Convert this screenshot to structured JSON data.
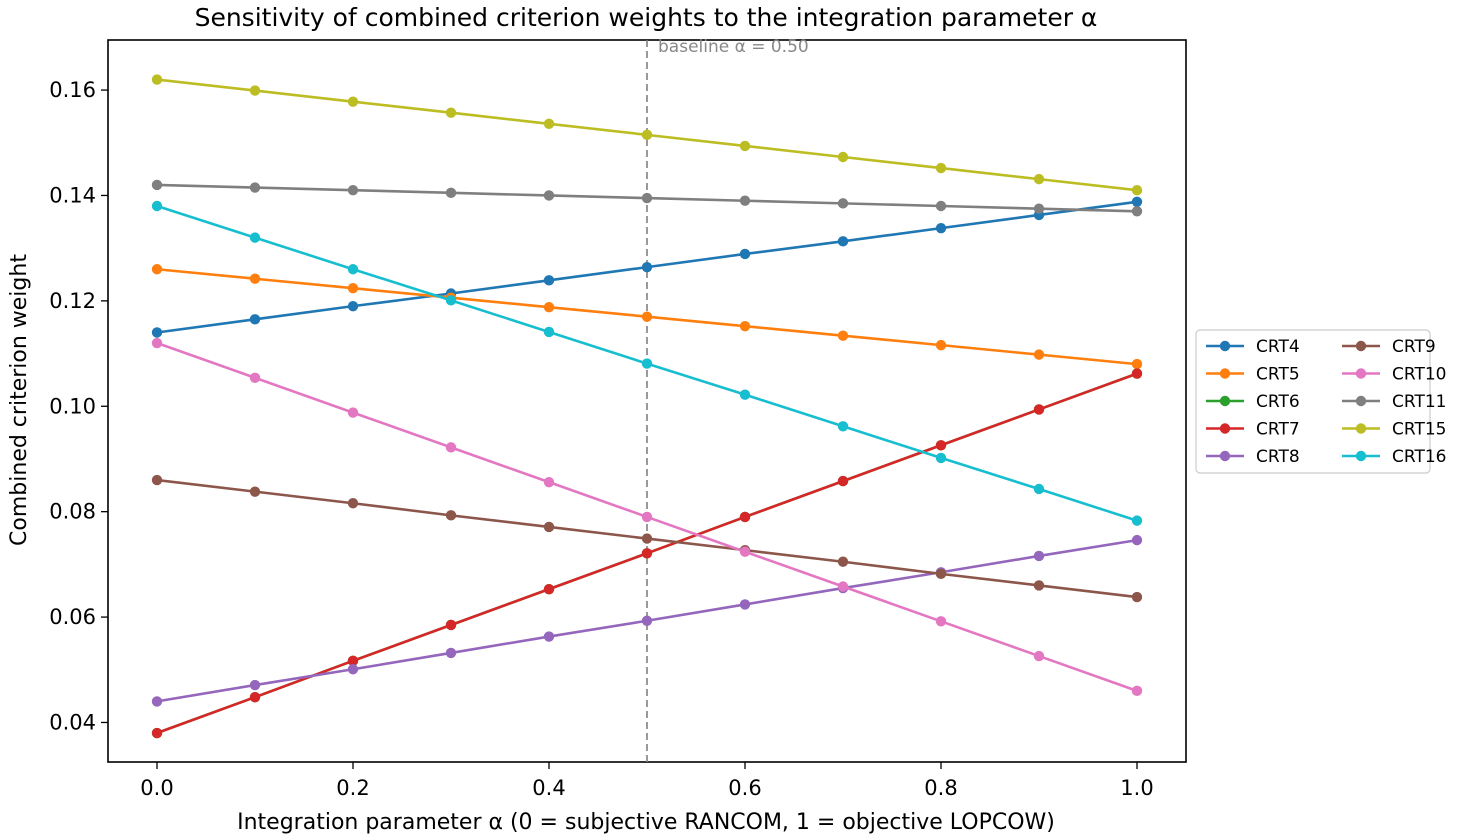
{
  "chart_data": {
    "type": "line",
    "title": "Sensitivity of combined criterion weights to the integration parameter α",
    "xlabel": "Integration parameter  α   (0 = subjective RANCOM,  1 = objective LOPCOW)",
    "ylabel": "Combined criterion weight",
    "x": [
      0.0,
      0.1,
      0.2,
      0.3,
      0.4,
      0.5,
      0.6,
      0.7,
      0.8,
      0.9,
      1.0
    ],
    "xlim": [
      -0.05,
      1.05
    ],
    "ylim": [
      0.0325,
      0.1695
    ],
    "xticks": [
      0.0,
      0.2,
      0.4,
      0.6,
      0.8,
      1.0
    ],
    "xtick_labels": [
      "0.0",
      "0.2",
      "0.4",
      "0.6",
      "0.8",
      "1.0"
    ],
    "yticks": [
      0.04,
      0.06,
      0.08,
      0.1,
      0.12,
      0.14,
      0.16
    ],
    "ytick_labels": [
      "0.04",
      "0.06",
      "0.08",
      "0.10",
      "0.12",
      "0.14",
      "0.16"
    ],
    "grid": false,
    "legend_placement": "outside-right",
    "baseline": {
      "x": 0.5,
      "label": "baseline α = 0.50",
      "color": "#808080"
    },
    "series": [
      {
        "name": "CRT4",
        "color": "#1f77b4",
        "values": [
          0.114,
          0.1165,
          0.119,
          0.1214,
          0.1239,
          0.1264,
          0.1289,
          0.1313,
          0.1338,
          0.1363,
          0.1388
        ]
      },
      {
        "name": "CRT5",
        "color": "#ff7f0e",
        "values": [
          0.126,
          0.1242,
          0.1224,
          0.1206,
          0.1188,
          0.117,
          0.1152,
          0.1134,
          0.1116,
          0.1098,
          0.108
        ]
      },
      {
        "name": "CRT6",
        "color": "#2ca02c",
        "values": [
          0.038,
          0.0448,
          0.0517,
          0.0585,
          0.0653,
          0.0721,
          0.079,
          0.0858,
          0.0926,
          0.0994,
          0.1062
        ]
      },
      {
        "name": "CRT7",
        "color": "#d62728",
        "values": [
          0.038,
          0.0448,
          0.0517,
          0.0585,
          0.0653,
          0.0721,
          0.079,
          0.0858,
          0.0926,
          0.0994,
          0.1062
        ]
      },
      {
        "name": "CRT8",
        "color": "#9467bd",
        "values": [
          0.044,
          0.0471,
          0.0501,
          0.0532,
          0.0563,
          0.0593,
          0.0624,
          0.0655,
          0.0685,
          0.0716,
          0.0746
        ]
      },
      {
        "name": "CRT9",
        "color": "#8c564b",
        "values": [
          0.086,
          0.0838,
          0.0816,
          0.0793,
          0.0771,
          0.0749,
          0.0727,
          0.0705,
          0.0682,
          0.066,
          0.0638
        ]
      },
      {
        "name": "CRT10",
        "color": "#e377c2",
        "values": [
          0.112,
          0.1054,
          0.0988,
          0.0922,
          0.0856,
          0.079,
          0.0724,
          0.0658,
          0.0592,
          0.0526,
          0.046
        ]
      },
      {
        "name": "CRT11",
        "color": "#7f7f7f",
        "values": [
          0.142,
          0.1415,
          0.141,
          0.1405,
          0.14,
          0.1395,
          0.139,
          0.1385,
          0.138,
          0.1375,
          0.137
        ]
      },
      {
        "name": "CRT15",
        "color": "#bcbd22",
        "values": [
          0.162,
          0.1599,
          0.1578,
          0.1557,
          0.1536,
          0.1515,
          0.1494,
          0.1473,
          0.1452,
          0.1431,
          0.141
        ]
      },
      {
        "name": "CRT16",
        "color": "#17becf",
        "values": [
          0.138,
          0.132,
          0.126,
          0.1201,
          0.1141,
          0.1081,
          0.1022,
          0.0962,
          0.0902,
          0.0843,
          0.0783
        ]
      }
    ]
  }
}
